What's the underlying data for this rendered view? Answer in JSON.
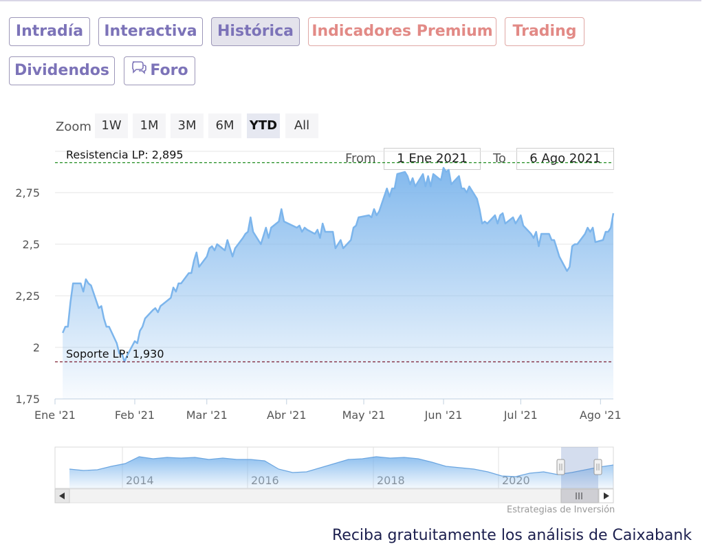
{
  "tabs": [
    {
      "label": "Intradía",
      "style": "normal"
    },
    {
      "label": "Interactiva",
      "style": "normal"
    },
    {
      "label": "Histórica",
      "style": "active"
    },
    {
      "label": "Indicadores Premium",
      "style": "premium"
    },
    {
      "label": "Trading",
      "style": "premium"
    },
    {
      "label": "Dividendos",
      "style": "normal"
    },
    {
      "label": "Foro",
      "style": "normal",
      "icon": "chat-bubbles-icon"
    }
  ],
  "zoom": {
    "label": "Zoom",
    "buttons": [
      "1W",
      "1M",
      "3M",
      "6M",
      "YTD",
      "All"
    ],
    "selected": "YTD"
  },
  "range": {
    "from_label": "From",
    "from_value": "1 Ene 2021",
    "to_label": "To",
    "to_value": "6 Ago 2021"
  },
  "navigator": {
    "year_labels": [
      "2014",
      "2016",
      "2018",
      "2020"
    ],
    "selection_handle_icon": "grip-icon",
    "scroll_left_icon": "arrow-left-icon",
    "scroll_right_icon": "arrow-right-icon"
  },
  "credit": "Estrategias de Inversión",
  "promo": "Reciba gratuitamente los análisis de Caixabank",
  "colors": {
    "series": "#7cb5ec",
    "resistance": "#1a8a1a",
    "support": "#7a1a2e",
    "tab_text": "#7c73b8",
    "premium_text": "#e28a86"
  },
  "chart_data": {
    "type": "area",
    "ylim": [
      1.75,
      2.95
    ],
    "yticks": [
      1.75,
      2.0,
      2.25,
      2.5,
      2.75
    ],
    "ytick_labels": [
      "1,75",
      "2",
      "2,25",
      "2,5",
      "2,75"
    ],
    "xtick_labels": [
      "Ene '21",
      "Feb '21",
      "Mar '21",
      "Abr '21",
      "May '21",
      "Jun '21",
      "Jul '21",
      "Ago '21"
    ],
    "xticks": [
      "2021-01-01",
      "2021-02-01",
      "2021-03-01",
      "2021-04-01",
      "2021-05-01",
      "2021-06-01",
      "2021-07-01",
      "2021-08-01"
    ],
    "xlim": [
      "2021-01-01",
      "2021-08-06"
    ],
    "series": [
      {
        "values": [
          [
            "2021-01-04",
            2.07
          ],
          [
            "2021-01-05",
            2.1
          ],
          [
            "2021-01-06",
            2.1
          ],
          [
            "2021-01-07",
            2.22
          ],
          [
            "2021-01-08",
            2.31
          ],
          [
            "2021-01-11",
            2.31
          ],
          [
            "2021-01-12",
            2.27
          ],
          [
            "2021-01-13",
            2.33
          ],
          [
            "2021-01-14",
            2.31
          ],
          [
            "2021-01-15",
            2.3
          ],
          [
            "2021-01-18",
            2.19
          ],
          [
            "2021-01-19",
            2.2
          ],
          [
            "2021-01-20",
            2.14
          ],
          [
            "2021-01-21",
            2.1
          ],
          [
            "2021-01-22",
            2.1
          ],
          [
            "2021-01-25",
            2.02
          ],
          [
            "2021-01-26",
            1.97
          ],
          [
            "2021-01-27",
            1.97
          ],
          [
            "2021-01-28",
            1.93
          ],
          [
            "2021-01-29",
            1.96
          ],
          [
            "2021-02-01",
            2.03
          ],
          [
            "2021-02-02",
            2.02
          ],
          [
            "2021-02-03",
            2.08
          ],
          [
            "2021-02-04",
            2.1
          ],
          [
            "2021-02-05",
            2.14
          ],
          [
            "2021-02-08",
            2.18
          ],
          [
            "2021-02-09",
            2.19
          ],
          [
            "2021-02-10",
            2.17
          ],
          [
            "2021-02-11",
            2.2
          ],
          [
            "2021-02-12",
            2.21
          ],
          [
            "2021-02-15",
            2.24
          ],
          [
            "2021-02-16",
            2.29
          ],
          [
            "2021-02-17",
            2.27
          ],
          [
            "2021-02-18",
            2.31
          ],
          [
            "2021-02-19",
            2.31
          ],
          [
            "2021-02-22",
            2.36
          ],
          [
            "2021-02-23",
            2.36
          ],
          [
            "2021-02-24",
            2.42
          ],
          [
            "2021-02-25",
            2.46
          ],
          [
            "2021-02-26",
            2.39
          ],
          [
            "2021-03-01",
            2.44
          ],
          [
            "2021-03-02",
            2.48
          ],
          [
            "2021-03-03",
            2.49
          ],
          [
            "2021-03-04",
            2.47
          ],
          [
            "2021-03-05",
            2.5
          ],
          [
            "2021-03-08",
            2.47
          ],
          [
            "2021-03-09",
            2.52
          ],
          [
            "2021-03-10",
            2.48
          ],
          [
            "2021-03-11",
            2.44
          ],
          [
            "2021-03-12",
            2.48
          ],
          [
            "2021-03-15",
            2.53
          ],
          [
            "2021-03-16",
            2.55
          ],
          [
            "2021-03-17",
            2.56
          ],
          [
            "2021-03-18",
            2.63
          ],
          [
            "2021-03-19",
            2.56
          ],
          [
            "2021-03-22",
            2.5
          ],
          [
            "2021-03-23",
            2.54
          ],
          [
            "2021-03-24",
            2.58
          ],
          [
            "2021-03-25",
            2.53
          ],
          [
            "2021-03-26",
            2.58
          ],
          [
            "2021-03-29",
            2.61
          ],
          [
            "2021-03-30",
            2.67
          ],
          [
            "2021-03-31",
            2.61
          ],
          [
            "2021-04-05",
            2.58
          ],
          [
            "2021-04-06",
            2.59
          ],
          [
            "2021-04-07",
            2.56
          ],
          [
            "2021-04-08",
            2.58
          ],
          [
            "2021-04-09",
            2.57
          ],
          [
            "2021-04-12",
            2.55
          ],
          [
            "2021-04-13",
            2.57
          ],
          [
            "2021-04-14",
            2.53
          ],
          [
            "2021-04-15",
            2.6
          ],
          [
            "2021-04-16",
            2.56
          ],
          [
            "2021-04-19",
            2.56
          ],
          [
            "2021-04-20",
            2.48
          ],
          [
            "2021-04-21",
            2.5
          ],
          [
            "2021-04-22",
            2.52
          ],
          [
            "2021-04-23",
            2.48
          ],
          [
            "2021-04-26",
            2.52
          ],
          [
            "2021-04-27",
            2.58
          ],
          [
            "2021-04-28",
            2.59
          ],
          [
            "2021-04-29",
            2.63
          ],
          [
            "2021-05-03",
            2.64
          ],
          [
            "2021-05-04",
            2.63
          ],
          [
            "2021-05-05",
            2.67
          ],
          [
            "2021-05-06",
            2.64
          ],
          [
            "2021-05-07",
            2.66
          ],
          [
            "2021-05-10",
            2.77
          ],
          [
            "2021-05-11",
            2.73
          ],
          [
            "2021-05-12",
            2.77
          ],
          [
            "2021-05-13",
            2.77
          ],
          [
            "2021-05-14",
            2.84
          ],
          [
            "2021-05-17",
            2.85
          ],
          [
            "2021-05-18",
            2.83
          ],
          [
            "2021-05-19",
            2.79
          ],
          [
            "2021-05-20",
            2.82
          ],
          [
            "2021-05-21",
            2.78
          ],
          [
            "2021-05-24",
            2.84
          ],
          [
            "2021-05-25",
            2.78
          ],
          [
            "2021-05-26",
            2.83
          ],
          [
            "2021-05-27",
            2.78
          ],
          [
            "2021-05-28",
            2.84
          ],
          [
            "2021-05-31",
            2.81
          ],
          [
            "2021-06-01",
            2.87
          ],
          [
            "2021-06-02",
            2.85
          ],
          [
            "2021-06-03",
            2.86
          ],
          [
            "2021-06-04",
            2.79
          ],
          [
            "2021-06-07",
            2.83
          ],
          [
            "2021-06-08",
            2.77
          ],
          [
            "2021-06-09",
            2.77
          ],
          [
            "2021-06-10",
            2.75
          ],
          [
            "2021-06-11",
            2.78
          ],
          [
            "2021-06-14",
            2.72
          ],
          [
            "2021-06-15",
            2.67
          ],
          [
            "2021-06-16",
            2.6
          ],
          [
            "2021-06-17",
            2.61
          ],
          [
            "2021-06-18",
            2.6
          ],
          [
            "2021-06-21",
            2.64
          ],
          [
            "2021-06-22",
            2.6
          ],
          [
            "2021-06-23",
            2.64
          ],
          [
            "2021-06-24",
            2.65
          ],
          [
            "2021-06-25",
            2.6
          ],
          [
            "2021-06-28",
            2.63
          ],
          [
            "2021-06-29",
            2.6
          ],
          [
            "2021-06-30",
            2.62
          ],
          [
            "2021-07-01",
            2.64
          ],
          [
            "2021-07-02",
            2.59
          ],
          [
            "2021-07-05",
            2.55
          ],
          [
            "2021-07-06",
            2.53
          ],
          [
            "2021-07-07",
            2.56
          ],
          [
            "2021-07-08",
            2.49
          ],
          [
            "2021-07-09",
            2.55
          ],
          [
            "2021-07-12",
            2.55
          ],
          [
            "2021-07-13",
            2.52
          ],
          [
            "2021-07-14",
            2.52
          ],
          [
            "2021-07-15",
            2.48
          ],
          [
            "2021-07-16",
            2.44
          ],
          [
            "2021-07-19",
            2.37
          ],
          [
            "2021-07-20",
            2.39
          ],
          [
            "2021-07-21",
            2.49
          ],
          [
            "2021-07-22",
            2.5
          ],
          [
            "2021-07-23",
            2.5
          ],
          [
            "2021-07-26",
            2.55
          ],
          [
            "2021-07-27",
            2.58
          ],
          [
            "2021-07-28",
            2.56
          ],
          [
            "2021-07-29",
            2.58
          ],
          [
            "2021-07-30",
            2.51
          ],
          [
            "2021-08-02",
            2.52
          ],
          [
            "2021-08-03",
            2.56
          ],
          [
            "2021-08-04",
            2.56
          ],
          [
            "2021-08-05",
            2.58
          ],
          [
            "2021-08-06",
            2.65
          ]
        ]
      }
    ],
    "annotations": [
      {
        "label": "Resistencia LP: 2,895",
        "value": 2.895,
        "color": "#1a8a1a"
      },
      {
        "label": "Soporte LP: 1,930",
        "value": 1.93,
        "color": "#7a1a2e"
      }
    ],
    "grid": true,
    "legend": "none"
  },
  "navigator_data": {
    "values": [
      2.28,
      2.26,
      2.27,
      2.32,
      2.36,
      2.46,
      2.43,
      2.45,
      2.44,
      2.45,
      2.42,
      2.44,
      2.42,
      2.42,
      2.4,
      2.28,
      2.23,
      2.24,
      2.3,
      2.36,
      2.42,
      2.43,
      2.46,
      2.44,
      2.45,
      2.43,
      2.38,
      2.32,
      2.3,
      2.28,
      2.24,
      2.18,
      2.17,
      2.22,
      2.24,
      2.2,
      2.23,
      2.27,
      2.31,
      2.34
    ]
  }
}
